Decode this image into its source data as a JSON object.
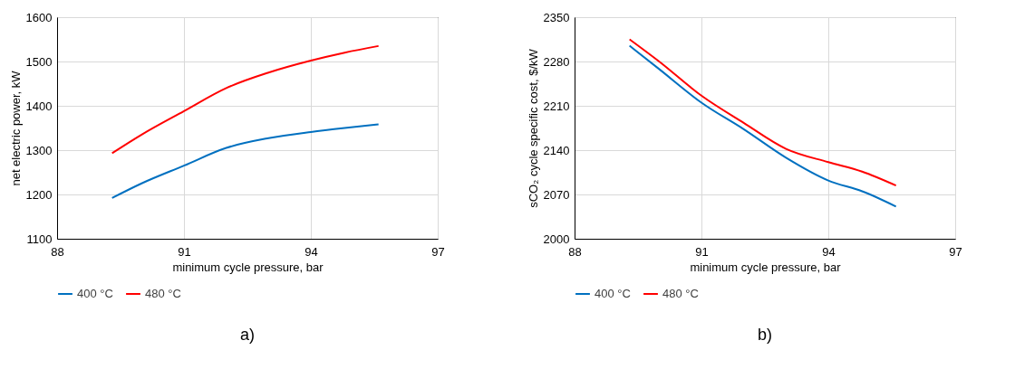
{
  "chart_data": [
    {
      "type": "line",
      "xlabel": "minimum cycle pressure, bar",
      "ylabel": "net electric power, kW",
      "x": [
        89.3,
        90,
        91,
        92,
        93,
        94,
        94.8,
        95.6
      ],
      "xlim": [
        88,
        97
      ],
      "xticks": [
        88,
        91,
        94,
        97
      ],
      "ylim": [
        1100,
        1600
      ],
      "yticks": [
        1100,
        1200,
        1300,
        1400,
        1500,
        1600
      ],
      "grid": true,
      "legend": "bottom",
      "annotations": [
        "a)"
      ],
      "series": [
        {
          "name": "400 °C",
          "color": "#0070c0",
          "values": [
            1192,
            1225,
            1265,
            1305,
            1327,
            1341,
            1350,
            1358
          ]
        },
        {
          "name": "480 °C",
          "color": "#ff0000",
          "values": [
            1293,
            1335,
            1388,
            1440,
            1475,
            1502,
            1520,
            1535
          ]
        }
      ]
    },
    {
      "type": "line",
      "xlabel": "minimum cycle pressure, bar",
      "ylabel": "sCO₂ cycle specific cost, $/kW",
      "x": [
        89.3,
        90,
        91,
        92,
        93,
        94,
        94.8,
        95.6
      ],
      "xlim": [
        88,
        97
      ],
      "xticks": [
        88,
        91,
        94,
        97
      ],
      "ylim": [
        2000,
        2350
      ],
      "yticks": [
        2000,
        2070,
        2140,
        2210,
        2280,
        2350
      ],
      "grid": true,
      "legend": "bottom",
      "annotations": [
        "b)"
      ],
      "series": [
        {
          "name": "400 °C",
          "color": "#0070c0",
          "values": [
            2305,
            2268,
            2215,
            2173,
            2128,
            2092,
            2075,
            2051
          ]
        },
        {
          "name": "480 °C",
          "color": "#ff0000",
          "values": [
            2315,
            2280,
            2226,
            2183,
            2142,
            2121,
            2106,
            2084
          ]
        }
      ]
    }
  ]
}
